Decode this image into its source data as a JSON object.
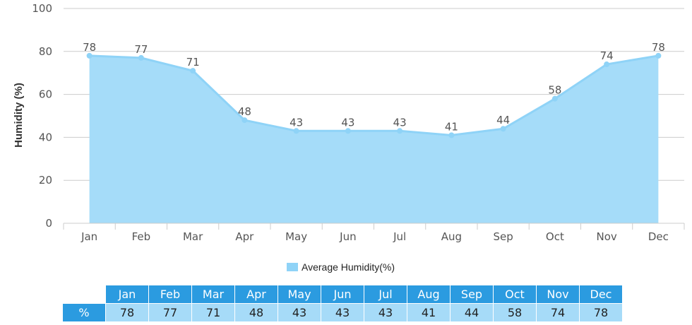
{
  "chart_data": {
    "type": "area",
    "categories": [
      "Jan",
      "Feb",
      "Mar",
      "Apr",
      "May",
      "Jun",
      "Jul",
      "Aug",
      "Sep",
      "Oct",
      "Nov",
      "Dec"
    ],
    "series": [
      {
        "name": "Average Humidity(%)",
        "values": [
          78,
          77,
          71,
          48,
          43,
          43,
          43,
          41,
          44,
          58,
          74,
          78
        ]
      }
    ],
    "ylabel": "Humidity (%)",
    "ylim": [
      0,
      100
    ],
    "yticks": [
      0,
      20,
      40,
      60,
      80,
      100
    ],
    "grid": true,
    "legend_position": "bottom",
    "colors": {
      "fill": "#a5dcf9",
      "line": "#8fd3f7",
      "header": "#2b9be0"
    }
  },
  "table": {
    "unit_label": "%"
  }
}
